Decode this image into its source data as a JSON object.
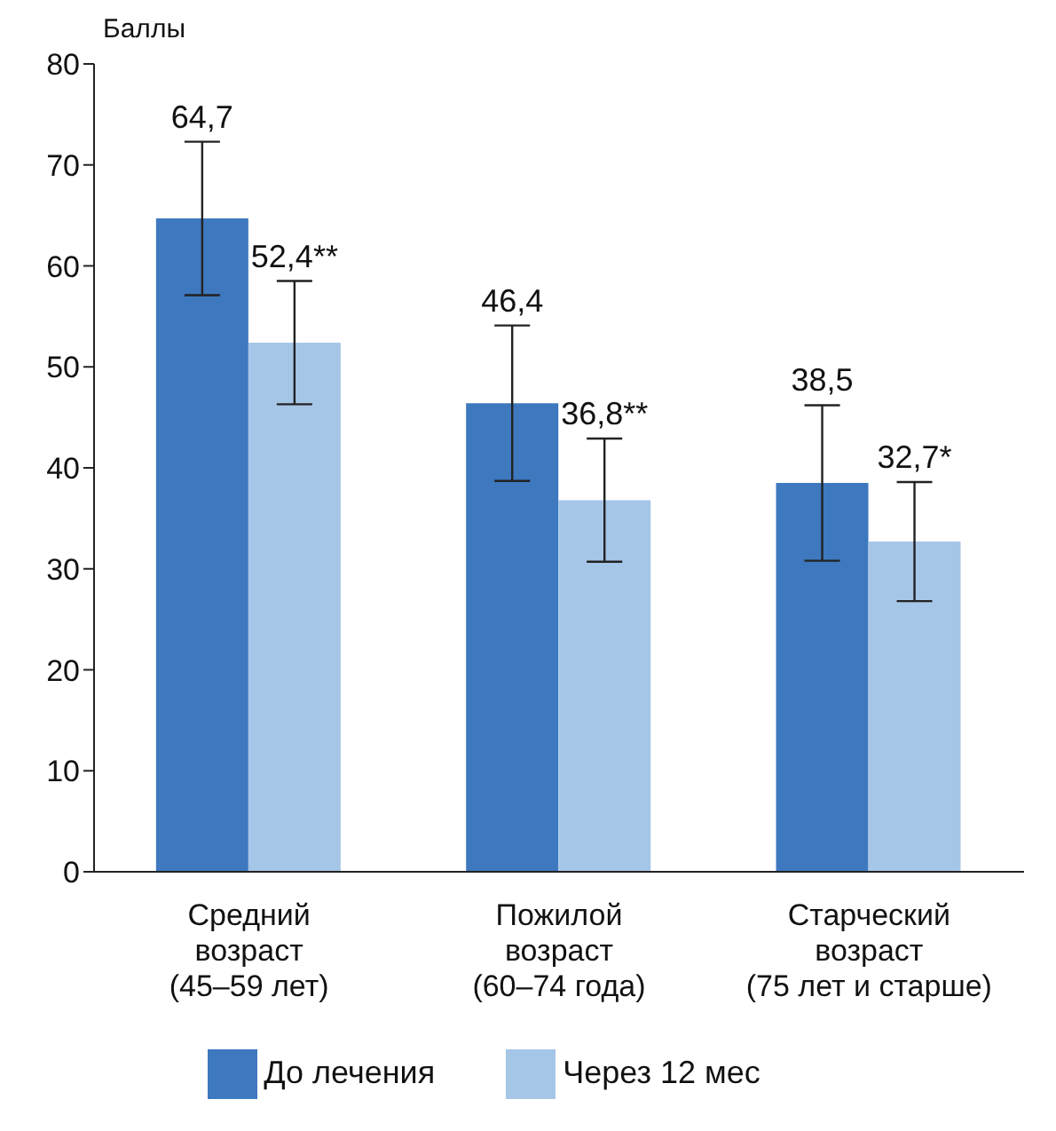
{
  "chart_data": {
    "type": "bar",
    "ylabel": "Баллы",
    "categories": [
      "Средний возраст (45–59 лет)",
      "Пожилой возраст (60–74 года)",
      "Старческий возраст (75 лет и старше)"
    ],
    "series": [
      {
        "name": "До лечения",
        "color": "#3e78bf",
        "values": [
          64.7,
          46.4,
          38.5
        ],
        "errors": [
          7.6,
          7.7,
          7.7
        ],
        "value_labels": [
          "64,7",
          "46,4",
          "38,5"
        ]
      },
      {
        "name": "Через 12 мес",
        "color": "#a6c6e8",
        "values": [
          52.4,
          36.8,
          32.7
        ],
        "errors": [
          6.1,
          6.1,
          5.9
        ],
        "value_labels": [
          "52,4**",
          "36,8**",
          "32,7*"
        ]
      }
    ],
    "ylim": [
      0,
      80
    ],
    "yticks": [
      0,
      10,
      20,
      30,
      40,
      50,
      60,
      70,
      80
    ],
    "grid": false,
    "legend": "bottom"
  }
}
